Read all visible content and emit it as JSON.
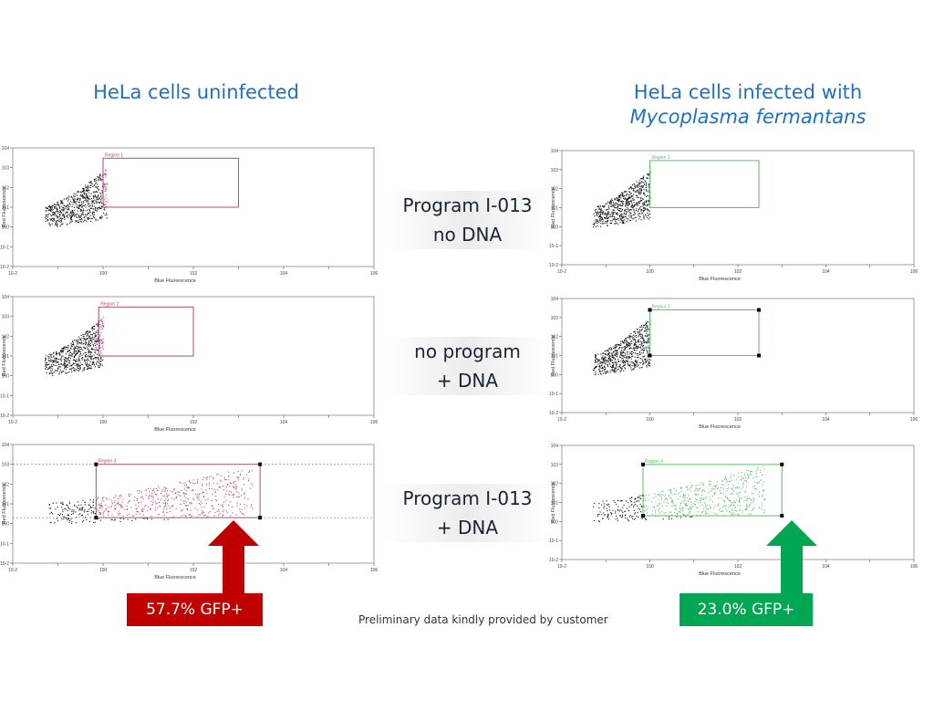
{
  "headings": {
    "left": "HeLa cells uninfected",
    "right_line1": "HeLa cells infected with",
    "right_line2": "Mycoplasma fermantans"
  },
  "conditions": [
    {
      "line1": "Program I-013",
      "line2": "no DNA"
    },
    {
      "line1": "no program",
      "line2": "+ DNA"
    },
    {
      "line1": "Program I-013",
      "line2": "+ DNA"
    }
  ],
  "callouts": {
    "left": {
      "label": "57.7% GFP+",
      "color": "#c00000"
    },
    "right": {
      "label": "23.0% GFP+",
      "color": "#00a651"
    }
  },
  "footnote": "Preliminary data kindly provided by customer",
  "colors": {
    "heading": "#1f6fc4",
    "uninfected_gate": "#b5487f",
    "infected_gate": "#5cbf6a",
    "events": "#111111"
  },
  "chart_data": [
    {
      "type": "scatter",
      "id": "uninfected-program-nodna",
      "xlabel": "Blue Fluorescence",
      "ylabel": "Red Fluorescence",
      "scale": "log",
      "xlim": [
        0.01,
        1000000
      ],
      "ylim": [
        0.01,
        10000
      ],
      "gate": {
        "label": "Region 1",
        "x": [
          1,
          1000
        ],
        "y": [
          10,
          3000
        ]
      },
      "cloud": {
        "x": [
          0.05,
          1.2
        ],
        "y": [
          1,
          1000
        ]
      }
    },
    {
      "type": "scatter",
      "id": "uninfected-noprogram-dna",
      "xlabel": "Blue Fluorescence",
      "ylabel": "Red Fluorescence",
      "scale": "log",
      "xlim": [
        0.01,
        1000000
      ],
      "ylim": [
        0.01,
        10000
      ],
      "gate": {
        "label": "Region 2",
        "x": [
          0.8,
          100
        ],
        "y": [
          10,
          3000
        ]
      },
      "cloud": {
        "x": [
          0.05,
          1
        ],
        "y": [
          1,
          1000
        ]
      }
    },
    {
      "type": "scatter",
      "id": "uninfected-program-dna",
      "xlabel": "Blue Fluorescence",
      "ylabel": "Red Fluorescence",
      "scale": "log",
      "xlim": [
        0.01,
        1000000
      ],
      "ylim": [
        0.01,
        10000
      ],
      "gate": {
        "label": "Region 3",
        "x": [
          0.7,
          3000
        ],
        "y": [
          2,
          1000
        ]
      },
      "cloud": {
        "x": [
          0.05,
          2000
        ],
        "y": [
          1,
          1000
        ]
      }
    },
    {
      "type": "scatter",
      "id": "infected-program-nodna",
      "xlabel": "Blue Fluorescence",
      "ylabel": "Red Fluorescence",
      "scale": "log",
      "xlim": [
        0.01,
        1000000
      ],
      "ylim": [
        0.01,
        10000
      ],
      "gate": {
        "label": "Region 1",
        "x": [
          1,
          300
        ],
        "y": [
          10,
          3000
        ]
      },
      "cloud": {
        "x": [
          0.05,
          1
        ],
        "y": [
          1,
          1000
        ]
      }
    },
    {
      "type": "scatter",
      "id": "infected-noprogram-dna",
      "xlabel": "Blue Fluorescence",
      "ylabel": "Red Fluorescence",
      "scale": "log",
      "xlim": [
        0.01,
        1000000
      ],
      "ylim": [
        0.01,
        10000
      ],
      "gate": {
        "label": "Region 2",
        "x": [
          1,
          300
        ],
        "y": [
          10,
          2500
        ]
      },
      "cloud": {
        "x": [
          0.05,
          1
        ],
        "y": [
          1,
          1000
        ]
      }
    },
    {
      "type": "scatter",
      "id": "infected-program-dna",
      "xlabel": "Blue Fluorescence",
      "ylabel": "Red Fluorescence",
      "scale": "log",
      "xlim": [
        0.01,
        1000000
      ],
      "ylim": [
        0.01,
        10000
      ],
      "gate": {
        "label": "Region 4",
        "x": [
          0.7,
          1000
        ],
        "y": [
          2,
          1000
        ]
      },
      "cloud": {
        "x": [
          0.05,
          400
        ],
        "y": [
          1,
          1000
        ]
      }
    }
  ]
}
